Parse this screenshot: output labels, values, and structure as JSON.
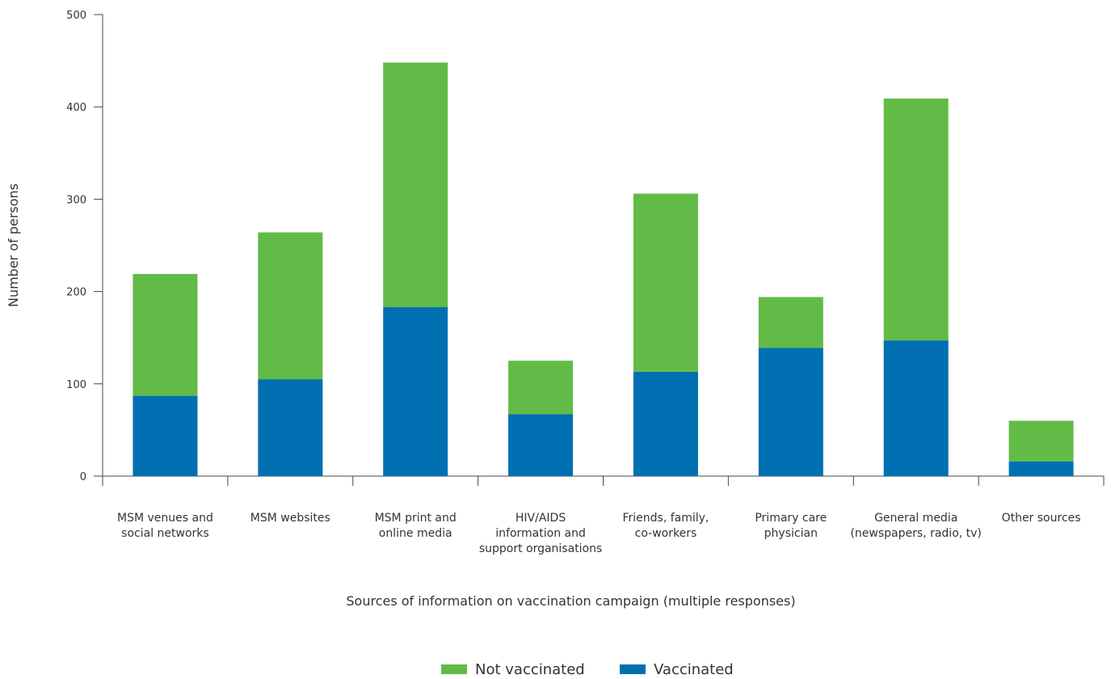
{
  "chart_data": {
    "type": "bar",
    "stacked": true,
    "categories": [
      [
        "MSM venues and",
        "social networks"
      ],
      [
        "MSM websites"
      ],
      [
        "MSM print and",
        "online media"
      ],
      [
        "HIV/AIDS",
        "information and",
        "support organisations"
      ],
      [
        "Friends, family,",
        "co-workers"
      ],
      [
        "Primary care",
        "physician"
      ],
      [
        "General media",
        "(newspapers, radio, tv)"
      ],
      [
        "Other sources"
      ]
    ],
    "series": [
      {
        "name": "Vaccinated",
        "color": "#0070b2",
        "values": [
          87,
          105,
          183,
          67,
          113,
          139,
          147,
          16
        ]
      },
      {
        "name": "Not vaccinated",
        "color": "#62bb46",
        "values": [
          132,
          159,
          265,
          58,
          193,
          55,
          262,
          44
        ]
      }
    ],
    "xlabel": "Sources of information on vaccination campaign (multiple responses)",
    "ylabel": "Number of persons",
    "ylim": [
      0,
      500
    ],
    "yticks": [
      0,
      100,
      200,
      300,
      400,
      500
    ],
    "grid": false,
    "legend": {
      "position": "bottom-center",
      "order": [
        "Not vaccinated",
        "Vaccinated"
      ]
    }
  }
}
